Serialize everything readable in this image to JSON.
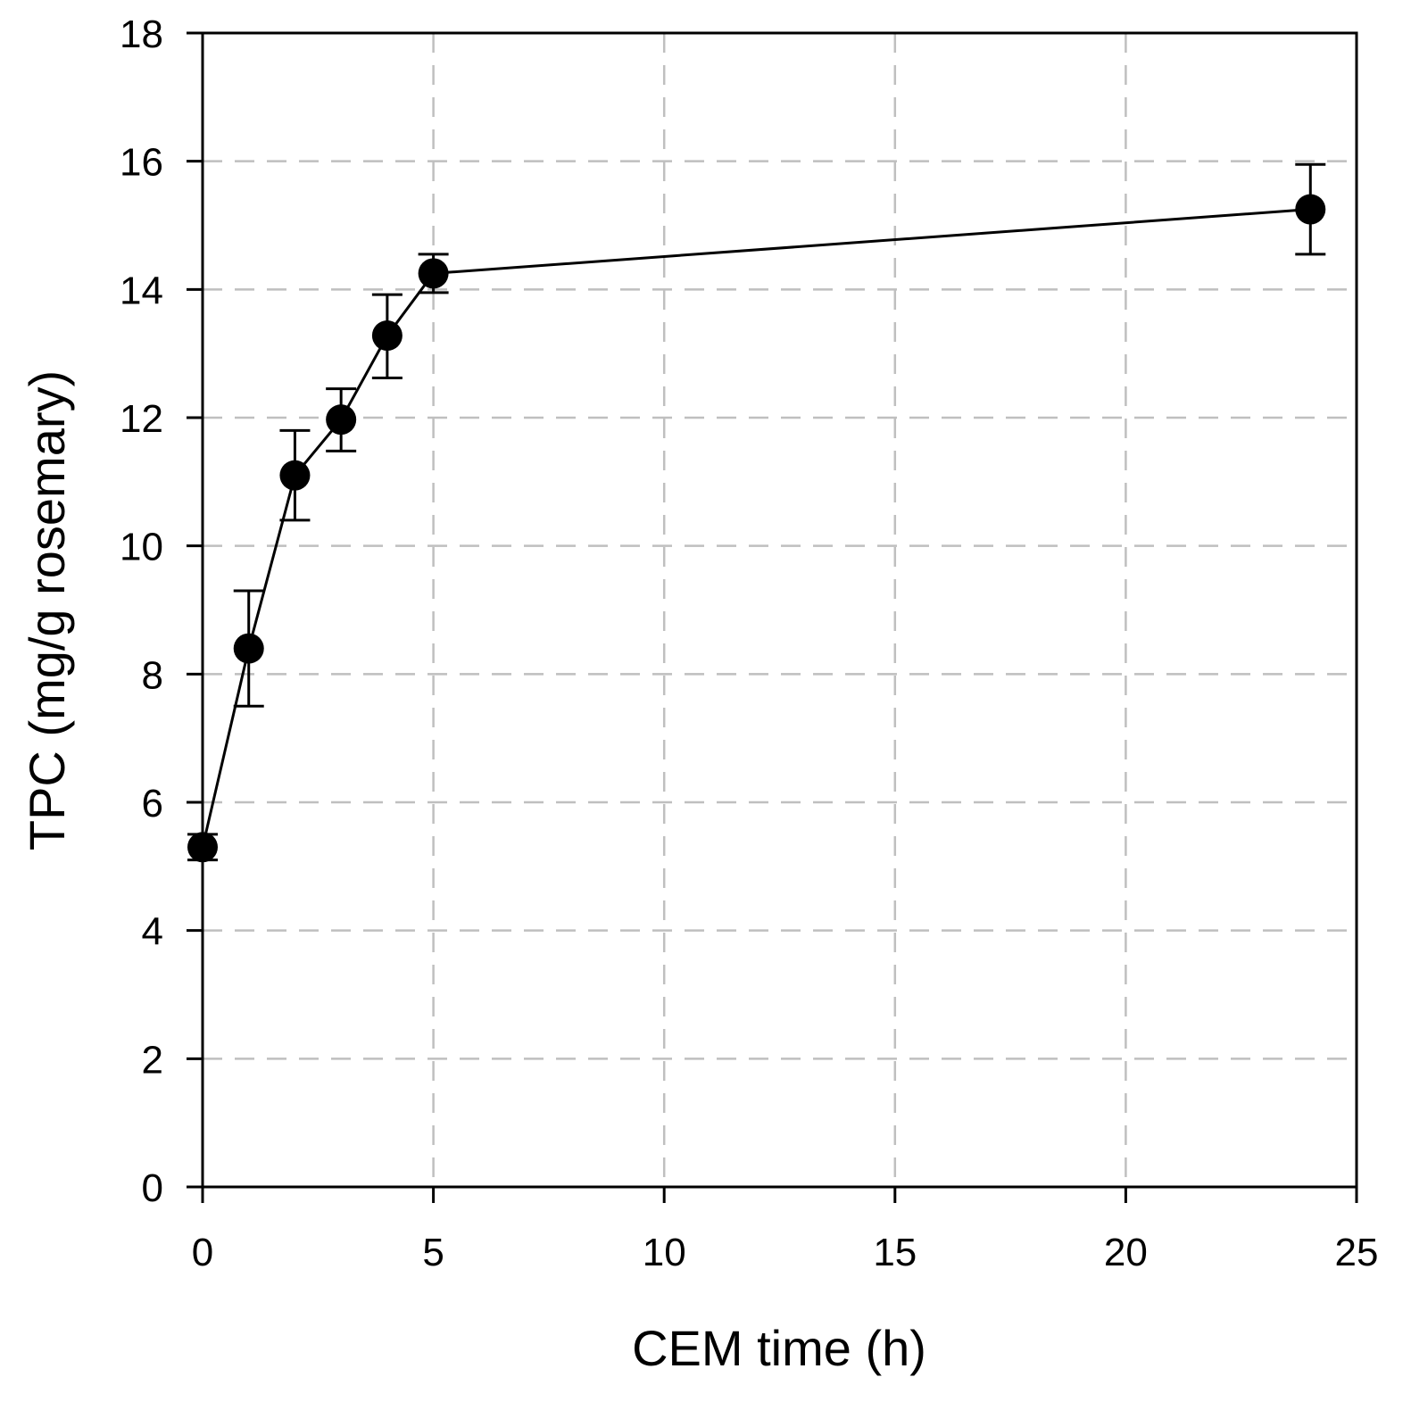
{
  "chart_data": {
    "type": "line",
    "title": "",
    "xlabel": "CEM time (h)",
    "ylabel": "TPC (mg/g rosemary)",
    "xlim": [
      0,
      25
    ],
    "ylim": [
      0,
      18
    ],
    "xticks": [
      0,
      5,
      10,
      15,
      20,
      25
    ],
    "yticks": [
      0,
      2,
      4,
      6,
      8,
      10,
      12,
      14,
      16,
      18
    ],
    "grid": true,
    "legend": "none",
    "series": [
      {
        "name": "TPC",
        "x": [
          0,
          1,
          2,
          3,
          4,
          5,
          24
        ],
        "y": [
          5.3,
          8.4,
          11.1,
          11.97,
          13.28,
          14.25,
          15.25
        ],
        "yerr_low": [
          5.1,
          7.5,
          10.4,
          11.48,
          12.62,
          13.95,
          14.55
        ],
        "yerr_high": [
          5.5,
          9.3,
          11.8,
          12.45,
          13.92,
          14.55,
          15.95
        ]
      }
    ]
  }
}
